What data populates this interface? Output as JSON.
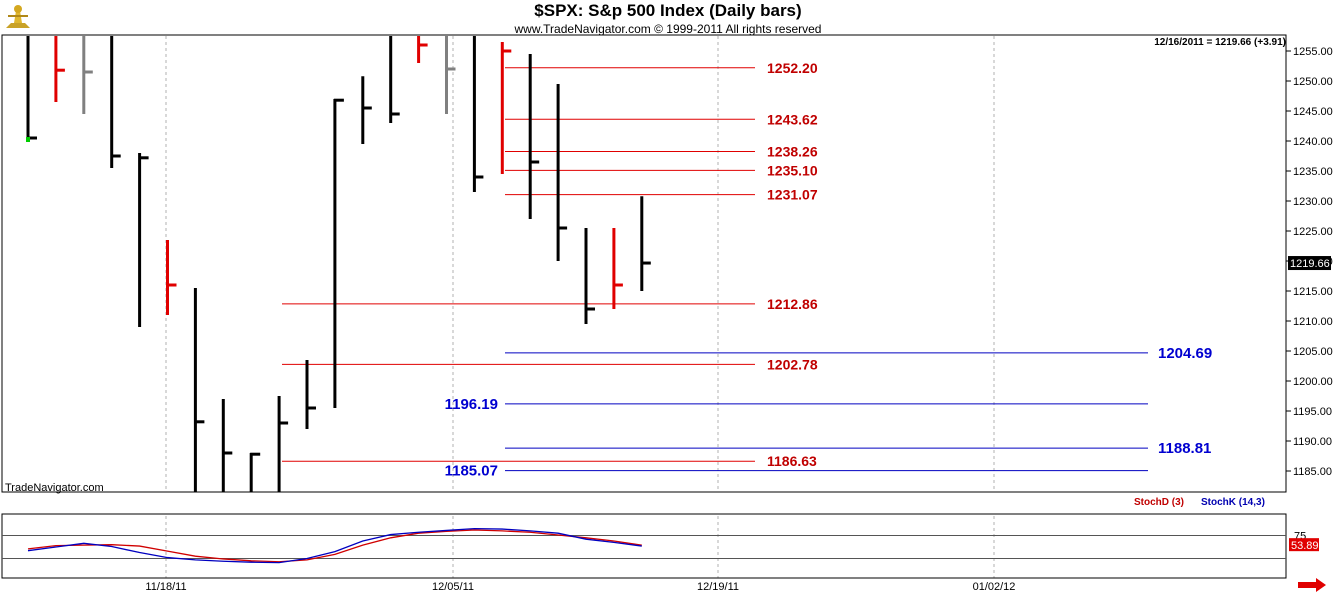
{
  "header": {
    "title": "$SPX:  S&p 500 Index  (Daily bars)",
    "copyright": "www.TradeNavigator.com © 1999-2011 All rights reserved",
    "last_bar_info": "12/16/2011 = 1219.66 (+3.91)",
    "brand": "TradeNavigator.com"
  },
  "indicator": {
    "stochd_label": "StochD (3)",
    "stochk_label": "StochK (14,3)",
    "stochd_color": "#d00000",
    "stochk_color": "#0000c0",
    "level_upper": "75",
    "level_lower": "25",
    "last_value": "53.89"
  },
  "colors": {
    "bar_up": "#000000",
    "bar_down": "#e00000",
    "bar_neutral": "#808080",
    "close_marker": "#00cc00",
    "level_red": "#e00000",
    "level_blue": "#0000c0",
    "last_price_box": "#000000"
  },
  "icons": [
    "trade-navigator-logo-icon",
    "scroll-right-arrow-icon"
  ],
  "chart_data": [
    {
      "type": "line",
      "title": "$SPX:  S&p 500 Index  (Daily bars)",
      "xlabel": "",
      "ylabel": "",
      "ylim": [
        1181.5,
        1257.5
      ],
      "x_ticks": [
        "11/18/11",
        "12/05/11",
        "12/19/11",
        "01/02/12"
      ],
      "y_ticks": [
        1185,
        1190,
        1195,
        1200,
        1205,
        1210,
        1215,
        1220,
        1225,
        1230,
        1235,
        1240,
        1245,
        1250,
        1255
      ],
      "grid": true,
      "last_price": "1219.66",
      "bars": [
        {
          "high": 1258.0,
          "low": 1240.0,
          "close": 1240.5,
          "color": "up"
        },
        {
          "high": 1258.0,
          "low": 1246.5,
          "close": 1251.8,
          "color": "down"
        },
        {
          "high": 1258.0,
          "low": 1244.5,
          "close": 1251.5,
          "color": "neutral"
        },
        {
          "high": 1258.0,
          "low": 1235.5,
          "close": 1237.5,
          "color": "up"
        },
        {
          "high": 1238.0,
          "low": 1209.0,
          "close": 1237.2,
          "color": "up"
        },
        {
          "high": 1223.5,
          "low": 1211.0,
          "close": 1216.0,
          "color": "down"
        },
        {
          "high": 1215.5,
          "low": 1180.0,
          "close": 1193.2,
          "color": "up"
        },
        {
          "high": 1197.0,
          "low": 1180.0,
          "close": 1188.0,
          "color": "up"
        },
        {
          "high": 1188.0,
          "low": 1180.0,
          "close": 1187.8,
          "color": "up"
        },
        {
          "high": 1197.5,
          "low": 1181.5,
          "close": 1193.0,
          "color": "up"
        },
        {
          "high": 1203.5,
          "low": 1192.0,
          "close": 1195.5,
          "color": "up"
        },
        {
          "high": 1247.0,
          "low": 1195.5,
          "close": 1246.8,
          "color": "up"
        },
        {
          "high": 1250.8,
          "low": 1239.5,
          "close": 1245.5,
          "color": "up"
        },
        {
          "high": 1258.0,
          "low": 1243.0,
          "close": 1244.5,
          "color": "up"
        },
        {
          "high": 1258.0,
          "low": 1253.0,
          "close": 1256.0,
          "color": "down"
        },
        {
          "high": 1258.0,
          "low": 1244.5,
          "close": 1252.0,
          "color": "neutral"
        },
        {
          "high": 1258.0,
          "low": 1231.5,
          "close": 1234.0,
          "color": "up"
        },
        {
          "high": 1256.5,
          "low": 1234.5,
          "close": 1255.0,
          "color": "down"
        },
        {
          "high": 1254.5,
          "low": 1227.0,
          "close": 1236.5,
          "color": "up"
        },
        {
          "high": 1249.5,
          "low": 1220.0,
          "close": 1225.5,
          "color": "up"
        },
        {
          "high": 1225.5,
          "low": 1209.5,
          "close": 1212.0,
          "color": "up"
        },
        {
          "high": 1225.5,
          "low": 1212.0,
          "close": 1216.0,
          "color": "down"
        },
        {
          "high": 1230.8,
          "low": 1215.0,
          "close": 1219.66,
          "color": "up"
        }
      ],
      "levels": [
        {
          "value": 1252.2,
          "label": "1252.20",
          "color": "red",
          "span": "right-short",
          "label_side": "right"
        },
        {
          "value": 1243.62,
          "label": "1243.62",
          "color": "red",
          "span": "right-short",
          "label_side": "right"
        },
        {
          "value": 1238.26,
          "label": "1238.26",
          "color": "red",
          "span": "right-short",
          "label_side": "right"
        },
        {
          "value": 1235.1,
          "label": "1235.10",
          "color": "red",
          "span": "right-short",
          "label_side": "right"
        },
        {
          "value": 1231.07,
          "label": "1231.07",
          "color": "red",
          "span": "right-short",
          "label_side": "right"
        },
        {
          "value": 1212.86,
          "label": "1212.86",
          "color": "red",
          "span": "wide",
          "label_side": "right"
        },
        {
          "value": 1202.78,
          "label": "1202.78",
          "color": "red",
          "span": "wide",
          "label_side": "right"
        },
        {
          "value": 1186.63,
          "label": "1186.63",
          "color": "red",
          "span": "wide",
          "label_side": "right"
        },
        {
          "value": 1204.69,
          "label": "1204.69",
          "color": "blue",
          "span": "long",
          "label_side": "right"
        },
        {
          "value": 1196.19,
          "label": "1196.19",
          "color": "blue",
          "span": "long",
          "label_side": "left"
        },
        {
          "value": 1188.81,
          "label": "1188.81",
          "color": "blue",
          "span": "long",
          "label_side": "right"
        },
        {
          "value": 1185.07,
          "label": "1185.07",
          "color": "blue",
          "span": "long",
          "label_side": "left"
        }
      ]
    },
    {
      "type": "line",
      "title": "",
      "ylim": [
        0,
        100
      ],
      "y_ticks": [
        75
      ],
      "series": [
        {
          "name": "StochD (3)",
          "color": "#d00000",
          "values": [
            46,
            53,
            54,
            55,
            52,
            41,
            30,
            24,
            20,
            18,
            22,
            34,
            54,
            70,
            80,
            84,
            87,
            85,
            82,
            76,
            70,
            63,
            54
          ]
        },
        {
          "name": "StochK (14,3)",
          "color": "#0000c0",
          "values": [
            42,
            50,
            58,
            51,
            38,
            27,
            22,
            19,
            17,
            16,
            25,
            40,
            63,
            77,
            82,
            86,
            90,
            89,
            85,
            80,
            67,
            60,
            52
          ]
        }
      ]
    }
  ]
}
